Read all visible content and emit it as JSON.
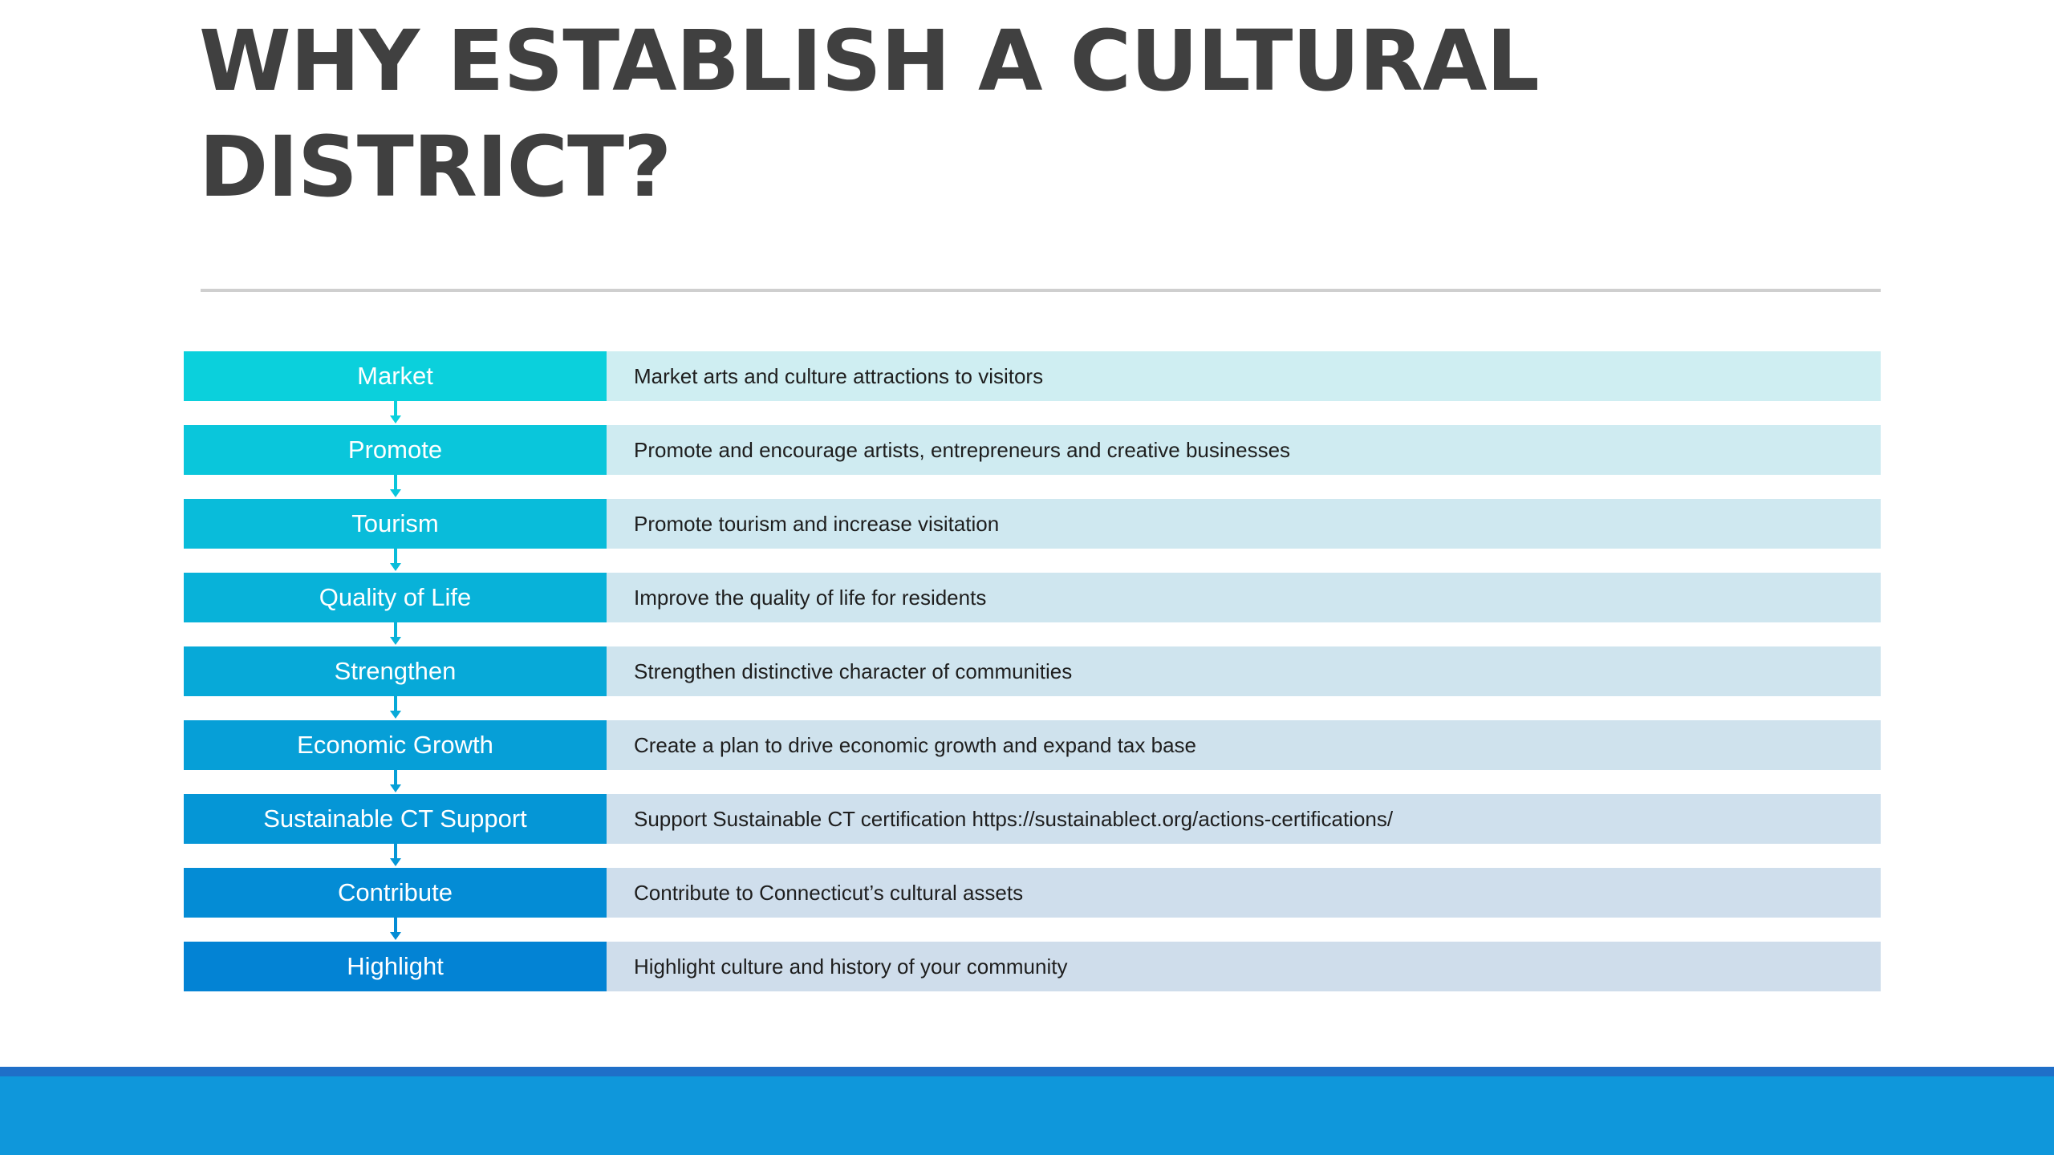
{
  "title": {
    "line1": "WHY ESTABLISH A CULTURAL",
    "line2": "DISTRICT?"
  },
  "colors": {
    "title_text": "#404040",
    "rule": "#cfcfcf",
    "footer_stripe": "#1f6fc8",
    "footer_band": "#0f97db"
  },
  "rows": [
    {
      "label": "Market",
      "description": "Market arts and culture attractions to visitors",
      "label_color": "#0bd0dc",
      "desc_color": "#cfeef2"
    },
    {
      "label": "Promote",
      "description": "Promote and encourage artists, entrepreneurs and creative businesses",
      "label_color": "#0ac6db",
      "desc_color": "#cfebf1"
    },
    {
      "label": "Tourism",
      "description": "Promote tourism and increase visitation",
      "label_color": "#09bcda",
      "desc_color": "#cfe8f0"
    },
    {
      "label": "Quality of Life",
      "description": "Improve the quality of life for residents",
      "label_color": "#08b2d9",
      "desc_color": "#cfe6ef"
    },
    {
      "label": "Strengthen",
      "description": "Strengthen distinctive character of communities",
      "label_color": "#07a9d8",
      "desc_color": "#cfe4ee"
    },
    {
      "label": "Economic Growth",
      "description": "Create a plan to drive economic growth and expand tax base",
      "label_color": "#069fd7",
      "desc_color": "#cfe2ed"
    },
    {
      "label": "Sustainable CT Support",
      "description": "Support Sustainable CT certification https://sustainablect.org/actions-certifications/",
      "label_color": "#0596d6",
      "desc_color": "#cfe0ed"
    },
    {
      "label": "Contribute",
      "description": "Contribute to Connecticut’s cultural assets",
      "label_color": "#048cd5",
      "desc_color": "#cfdeec"
    },
    {
      "label": "Highlight",
      "description": "Highlight culture and history of your community",
      "label_color": "#0383d4",
      "desc_color": "#cfddeb"
    }
  ]
}
